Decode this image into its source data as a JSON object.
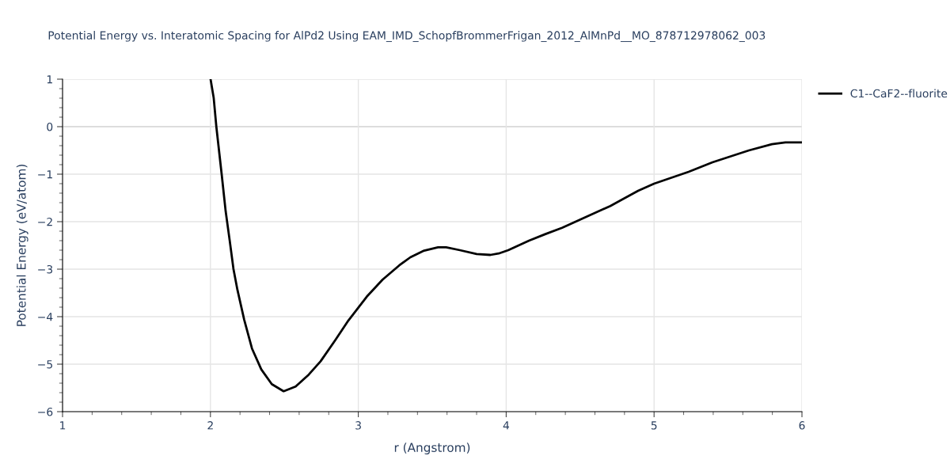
{
  "chart_data": {
    "type": "line",
    "title": "Potential Energy vs. Interatomic Spacing for AlPd2 Using EAM_IMD_SchopfBrommerFrigan_2012_AlMnPd__MO_878712978062_003",
    "xlabel": "r (Angstrom)",
    "ylabel": "Potential Energy (eV/atom)",
    "series": [
      {
        "name": "C1--CaF2--fluorite",
        "color": "#000000",
        "x": [
          2.001,
          2.022,
          2.04,
          2.076,
          2.103,
          2.13,
          2.156,
          2.183,
          2.228,
          2.281,
          2.344,
          2.415,
          2.495,
          2.576,
          2.665,
          2.745,
          2.843,
          2.933,
          3.057,
          3.164,
          3.277,
          3.352,
          3.445,
          3.539,
          3.594,
          3.687,
          3.8,
          3.893,
          3.949,
          4.014,
          4.154,
          4.266,
          4.378,
          4.49,
          4.704,
          4.892,
          5.0,
          5.234,
          5.395,
          5.641,
          5.797,
          5.888,
          6.0
        ],
        "values": [
          1.0,
          0.61,
          0.0,
          -1.0,
          -1.78,
          -2.39,
          -3.0,
          -3.44,
          -4.06,
          -4.67,
          -5.11,
          -5.42,
          -5.57,
          -5.47,
          -5.22,
          -4.94,
          -4.5,
          -4.08,
          -3.58,
          -3.22,
          -2.92,
          -2.75,
          -2.61,
          -2.54,
          -2.54,
          -2.6,
          -2.68,
          -2.7,
          -2.67,
          -2.6,
          -2.4,
          -2.26,
          -2.13,
          -1.97,
          -1.67,
          -1.35,
          -1.2,
          -0.95,
          -0.75,
          -0.5,
          -0.37,
          -0.33,
          -0.33
        ]
      }
    ],
    "xlim": [
      1,
      6
    ],
    "xticks": [
      1,
      2,
      3,
      4,
      5,
      6
    ],
    "ylim": [
      -6,
      1
    ],
    "yticks": [
      {
        "value": -6,
        "label": "−6"
      },
      {
        "value": -5,
        "label": "−5"
      },
      {
        "value": -4,
        "label": "−4"
      },
      {
        "value": -3,
        "label": "−3"
      },
      {
        "value": -2,
        "label": "−2"
      },
      {
        "value": -1,
        "label": "−1"
      },
      0,
      1
    ],
    "ref_lines": [
      {
        "axis": "y",
        "value": 0,
        "color": "#c8c8c8"
      }
    ],
    "grid": true,
    "legend": "top right",
    "line_style": "solid",
    "marker": "none"
  }
}
